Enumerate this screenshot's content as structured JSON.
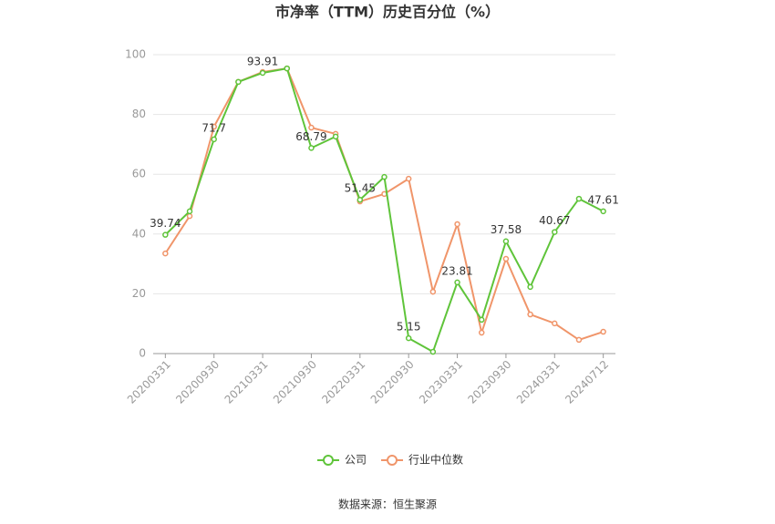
{
  "chart_data": {
    "type": "line",
    "title": "市净率（TTM）历史百分位（%）",
    "source": "数据来源：恒生聚源",
    "categories": [
      "20200331",
      null,
      "20200930",
      null,
      "20210331",
      null,
      "20210930",
      null,
      "20220331",
      null,
      "20220930",
      null,
      "20230331",
      null,
      "20230930",
      null,
      "20240331",
      null,
      "20240712"
    ],
    "series": [
      {
        "name": "公司",
        "color": "#5fc43a",
        "values": [
          39.74,
          47.6,
          71.7,
          90.9,
          93.91,
          95.4,
          68.79,
          72.6,
          51.45,
          59.1,
          5.15,
          0.6,
          23.81,
          11.3,
          37.58,
          22.3,
          40.67,
          51.8,
          47.61
        ]
      },
      {
        "name": "行业中位数",
        "color": "#f0956a",
        "values": [
          33.5,
          46.0,
          75.9,
          90.9,
          94.2,
          95.4,
          75.6,
          73.5,
          50.9,
          53.4,
          58.5,
          20.7,
          43.3,
          7.0,
          31.7,
          13.1,
          10.1,
          4.6,
          7.3
        ]
      }
    ],
    "ylim": [
      0,
      100
    ],
    "yticks": [
      0,
      20,
      40,
      60,
      80,
      100
    ],
    "grid": true,
    "legend": "bottom"
  }
}
